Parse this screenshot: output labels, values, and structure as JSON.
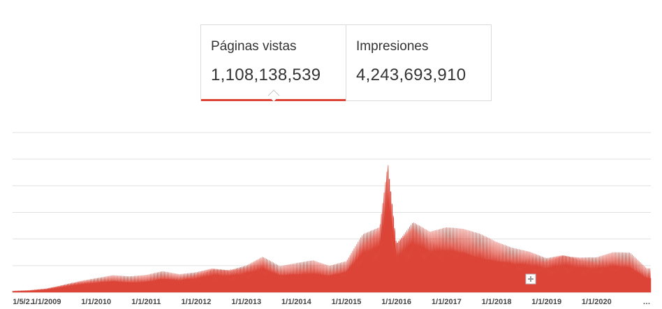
{
  "tabs": [
    {
      "label": "Páginas vistas",
      "value": "1,108,138,539",
      "selected": true
    },
    {
      "label": "Impresiones",
      "value": "4,243,693,910",
      "selected": false
    }
  ],
  "colors": {
    "series": "#db4437",
    "grid": "#e0e0e0",
    "tab_border": "#dadada"
  },
  "chart_data": {
    "type": "area",
    "grid": true,
    "y_axis_labels_visible": false,
    "xlabels": [
      "1/5/2…",
      "1/1/2009",
      "1/1/2010",
      "1/1/2011",
      "1/1/2012",
      "1/1/2013",
      "1/1/2014",
      "1/1/2015",
      "1/1/2016",
      "1/1/2017",
      "1/1/2018",
      "1/1/2019",
      "1/1/2020",
      "…"
    ],
    "x_start": "2008-05-01",
    "x_end": "2021-01-31",
    "ylim": [
      0,
      6
    ],
    "series": [
      {
        "values": [
          [
            "2008-05",
            0.05
          ],
          [
            "2008-09",
            0.08
          ],
          [
            "2009-01",
            0.15
          ],
          [
            "2009-05",
            0.3
          ],
          [
            "2009-09",
            0.45
          ],
          [
            "2010-01",
            0.55
          ],
          [
            "2010-05",
            0.65
          ],
          [
            "2010-09",
            0.6
          ],
          [
            "2011-01",
            0.65
          ],
          [
            "2011-05",
            0.8
          ],
          [
            "2011-09",
            0.7
          ],
          [
            "2012-01",
            0.8
          ],
          [
            "2012-05",
            1.0
          ],
          [
            "2012-09",
            0.95
          ],
          [
            "2013-01",
            1.1
          ],
          [
            "2013-05",
            1.4
          ],
          [
            "2013-09",
            1.0
          ],
          [
            "2014-01",
            1.1
          ],
          [
            "2014-05",
            1.2
          ],
          [
            "2014-09",
            1.0
          ],
          [
            "2015-01",
            1.2
          ],
          [
            "2015-05",
            2.3
          ],
          [
            "2015-09",
            2.7
          ],
          [
            "2015-11",
            5.5
          ],
          [
            "2016-01",
            2.1
          ],
          [
            "2016-05",
            2.9
          ],
          [
            "2016-09",
            2.4
          ],
          [
            "2017-01",
            2.5
          ],
          [
            "2017-05",
            2.4
          ],
          [
            "2017-09",
            2.2
          ],
          [
            "2018-01",
            1.9
          ],
          [
            "2018-05",
            1.7
          ],
          [
            "2018-09",
            1.6
          ],
          [
            "2019-01",
            1.4
          ],
          [
            "2019-05",
            1.6
          ],
          [
            "2019-09",
            1.45
          ],
          [
            "2020-01",
            1.4
          ],
          [
            "2020-05",
            1.55
          ],
          [
            "2020-09",
            1.5
          ],
          [
            "2021-01",
            0.9
          ]
        ]
      }
    ]
  }
}
